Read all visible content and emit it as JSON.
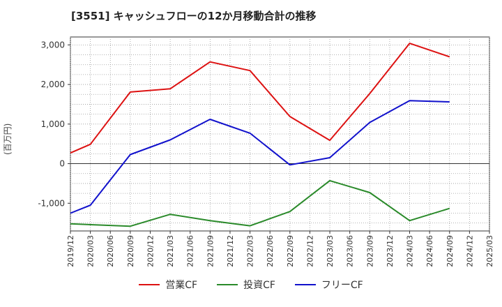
{
  "chart_data": {
    "type": "line",
    "title": "[3551]  キャッシュフローの12か月移動合計の推移",
    "xlabel": "",
    "ylabel": "(百万円)",
    "ylim": [
      -1700,
      3200
    ],
    "yticks": [
      3000,
      2000,
      1000,
      0,
      -1000
    ],
    "ytick_labels": [
      "3,000",
      "2,000",
      "1,000",
      "0",
      "-1,000"
    ],
    "xticks": [
      "2019/12",
      "2020/03",
      "2020/06",
      "2020/09",
      "2020/12",
      "2021/03",
      "2021/06",
      "2021/09",
      "2021/12",
      "2022/03",
      "2022/06",
      "2022/09",
      "2022/12",
      "2023/03",
      "2023/06",
      "2023/09",
      "2023/12",
      "2024/03",
      "2024/06",
      "2024/09",
      "2024/12",
      "2025/03"
    ],
    "grid": true,
    "legend_position": "bottom",
    "series": [
      {
        "name": "営業CF",
        "color": "#dd1111",
        "x": [
          "2019/12",
          "2020/03",
          "2020/09",
          "2021/03",
          "2021/09",
          "2022/03",
          "2022/09",
          "2023/03",
          "2023/09",
          "2024/03",
          "2024/09"
        ],
        "values": [
          270,
          490,
          1810,
          1890,
          2570,
          2350,
          1190,
          590,
          1770,
          3040,
          2700
        ]
      },
      {
        "name": "投資CF",
        "color": "#2a8a2a",
        "x": [
          "2019/12",
          "2020/09",
          "2021/03",
          "2021/09",
          "2022/03",
          "2022/09",
          "2023/03",
          "2023/09",
          "2024/03",
          "2024/09"
        ],
        "values": [
          -1520,
          -1580,
          -1280,
          -1440,
          -1570,
          -1210,
          -430,
          -730,
          -1440,
          -1130
        ]
      },
      {
        "name": "フリーCF",
        "color": "#1111cc",
        "x": [
          "2019/12",
          "2020/03",
          "2020/09",
          "2021/03",
          "2021/09",
          "2022/03",
          "2022/09",
          "2023/03",
          "2023/09",
          "2024/03",
          "2024/09"
        ],
        "values": [
          -1250,
          -1050,
          230,
          600,
          1120,
          770,
          -30,
          150,
          1040,
          1590,
          1560
        ]
      }
    ]
  }
}
